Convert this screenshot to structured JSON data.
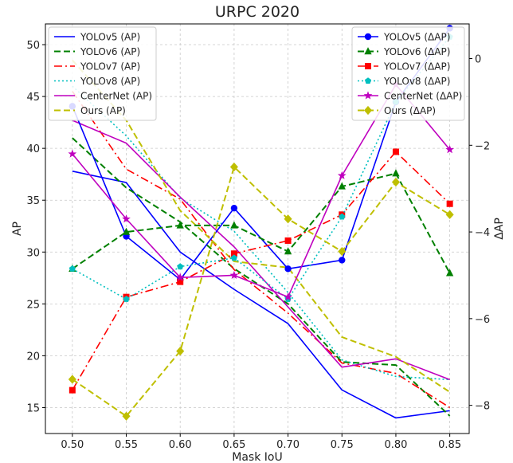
{
  "chart_data": {
    "type": "line",
    "title": "URPC 2020",
    "xlabel": "Mask IoU",
    "ylabel": "AP",
    "y2label": "ΔAP",
    "x": [
      0.5,
      0.55,
      0.6,
      0.65,
      0.7,
      0.75,
      0.8,
      0.85
    ],
    "x_tick_labels": [
      "0.50",
      "0.55",
      "0.60",
      "0.65",
      "0.70",
      "0.75",
      "0.80",
      "0.85"
    ],
    "xlim": [
      0.475,
      0.868
    ],
    "ylim": [
      12.5,
      52.0
    ],
    "y2lim": [
      -8.65,
      0.8
    ],
    "y_ticks": [
      15,
      20,
      25,
      30,
      35,
      40,
      45,
      50
    ],
    "y2_ticks": [
      -8,
      -6,
      -4,
      -2,
      0
    ],
    "y2_tick_labels": [
      "−8",
      "−6",
      "−4",
      "−2",
      "0"
    ],
    "grid": true,
    "legend_left_placement": "top-left",
    "legend_right_placement": "top-right",
    "series": [
      {
        "name": "YOLOv5 (AP)",
        "axis": "left",
        "color": "#0000ff",
        "dash": "solid",
        "marker": "none",
        "values": [
          37.8,
          36.7,
          30.0,
          26.4,
          23.1,
          16.7,
          14.0,
          14.7
        ]
      },
      {
        "name": "YOLOv6 (AP)",
        "axis": "left",
        "color": "#008000",
        "dash": "dashed",
        "marker": "none",
        "values": [
          41.0,
          36.2,
          32.9,
          28.4,
          25.0,
          19.4,
          19.1,
          14.2
        ]
      },
      {
        "name": "YOLOv7 (AP)",
        "axis": "left",
        "color": "#ff0000",
        "dash": "dashdot",
        "marker": "none",
        "values": [
          45.5,
          38.0,
          35.1,
          28.3,
          24.1,
          19.3,
          18.3,
          15.0
        ]
      },
      {
        "name": "YOLOv8 (AP)",
        "axis": "left",
        "color": "#00bfbf",
        "dash": "dotted",
        "marker": "none",
        "values": [
          46.0,
          41.2,
          35.2,
          32.0,
          26.1,
          19.6,
          18.0,
          17.7
        ]
      },
      {
        "name": "CenterNet (AP)",
        "axis": "left",
        "color": "#bf00bf",
        "dash": "solid",
        "marker": "none",
        "values": [
          42.7,
          40.5,
          35.3,
          30.5,
          24.7,
          18.9,
          19.7,
          17.7
        ]
      },
      {
        "name": "Ours (AP)",
        "axis": "left",
        "color": "#bfbf00",
        "dash": "dashed",
        "marker": "none",
        "values": [
          48.5,
          42.7,
          34.0,
          29.1,
          28.5,
          21.8,
          19.9,
          16.5
        ]
      },
      {
        "name": "YOLOv5 (ΔAP)",
        "axis": "right",
        "color": "#0000ff",
        "dash": "solid",
        "marker": "circle",
        "values": [
          -1.1,
          -4.1,
          -5.1,
          -3.45,
          -4.85,
          -4.65,
          -1.0,
          0.7
        ]
      },
      {
        "name": "YOLOv6 (ΔAP)",
        "axis": "right",
        "color": "#008000",
        "dash": "dashed",
        "marker": "triangle",
        "values": [
          -4.85,
          -4.0,
          -3.85,
          -3.85,
          -4.45,
          -2.95,
          -2.65,
          -4.95
        ]
      },
      {
        "name": "YOLOv7 (ΔAP)",
        "axis": "right",
        "color": "#ff0000",
        "dash": "dashdot",
        "marker": "square",
        "values": [
          -7.65,
          -5.5,
          -5.15,
          -4.5,
          -4.2,
          -3.6,
          -2.15,
          -3.35
        ]
      },
      {
        "name": "YOLOv8 (ΔAP)",
        "axis": "right",
        "color": "#00bfbf",
        "dash": "dotted",
        "marker": "pentagon",
        "values": [
          -4.85,
          -5.55,
          -4.8,
          -4.6,
          -5.55,
          -3.65,
          -1.0,
          0.5
        ]
      },
      {
        "name": "CenterNet (ΔAP)",
        "axis": "right",
        "color": "#bf00bf",
        "dash": "solid",
        "marker": "star",
        "values": [
          -2.2,
          -3.7,
          -5.05,
          -5.0,
          -5.5,
          -2.7,
          -0.6,
          -2.1
        ]
      },
      {
        "name": "Ours (ΔAP)",
        "axis": "right",
        "color": "#bfbf00",
        "dash": "dashed",
        "marker": "diamond",
        "values": [
          -7.4,
          -8.25,
          -6.75,
          -2.5,
          -3.7,
          -4.45,
          -2.85,
          -3.6
        ]
      }
    ]
  }
}
